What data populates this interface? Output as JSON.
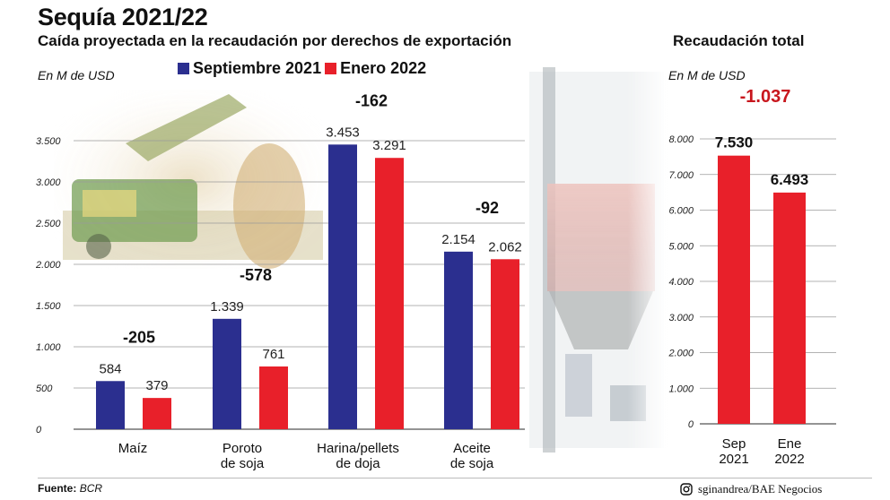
{
  "header": {
    "title": "Sequía 2021/22",
    "subtitle": "Caída proyectada en la recaudación por derechos de exportación",
    "right_title": "Recaudación total",
    "unit_left": "En M de USD",
    "unit_right": "En M de USD"
  },
  "legend": {
    "items": [
      {
        "label": "Septiembre 2021",
        "color": "#2b2f8f"
      },
      {
        "label": "Enero 2022",
        "color": "#e8202a"
      }
    ]
  },
  "footer": {
    "source_label": "Fuente:",
    "source_value": "BCR",
    "credit": "sginandrea/BAE Negocios",
    "credit_icon": "instagram-icon"
  },
  "chart_data": [
    {
      "type": "bar",
      "unit": "En M de USD",
      "categories": [
        "Maíz",
        "Poroto de soja",
        "Harina/pellets de doja",
        "Aceite de soja"
      ],
      "category_lines": [
        [
          "Maíz"
        ],
        [
          "Poroto",
          "de soja"
        ],
        [
          "Harina/pellets",
          "de doja"
        ],
        [
          "Aceite",
          "de soja"
        ]
      ],
      "series": [
        {
          "name": "Septiembre 2021",
          "color": "#2b2f8f",
          "values": [
            584,
            1339,
            3453,
            2154
          ],
          "labels": [
            "584",
            "1.339",
            "3.453",
            "2.154"
          ]
        },
        {
          "name": "Enero 2022",
          "color": "#e8202a",
          "values": [
            379,
            761,
            3291,
            2062
          ],
          "labels": [
            "379",
            "761",
            "3.291",
            "2.062"
          ]
        }
      ],
      "differences": [
        "-205",
        "-578",
        "-162",
        "-92"
      ],
      "ylim": [
        0,
        3500
      ],
      "yticks": [
        0,
        500,
        1000,
        1500,
        2000,
        2500,
        3000,
        3500
      ],
      "ytick_labels": [
        "0",
        "500",
        "1.000",
        "1.500",
        "2.000",
        "2.500",
        "3.000",
        "3.500"
      ],
      "grid": true
    },
    {
      "type": "bar",
      "title": "Recaudación total",
      "unit": "En M de USD",
      "categories": [
        "Sep 2021",
        "Ene 2022"
      ],
      "category_lines": [
        [
          "Sep",
          "2021"
        ],
        [
          "Ene",
          "2022"
        ]
      ],
      "values": [
        7530,
        6493
      ],
      "labels": [
        "7.530",
        "6.493"
      ],
      "color": "#e8202a",
      "difference": "-1.037",
      "ylim": [
        0,
        8000
      ],
      "yticks": [
        0,
        1000,
        2000,
        3000,
        4000,
        5000,
        6000,
        7000,
        8000
      ],
      "ytick_labels": [
        "0",
        "1.000",
        "2.000",
        "3.000",
        "4.000",
        "5.000",
        "6.000",
        "7.000",
        "8.000"
      ],
      "grid": true
    }
  ]
}
